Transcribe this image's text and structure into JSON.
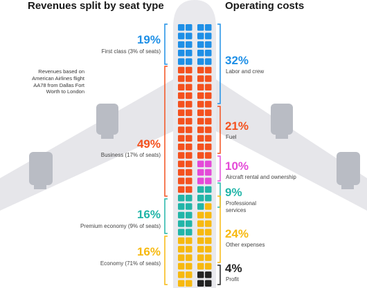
{
  "headings": {
    "left": "Revenues split by seat type",
    "right": "Operating costs"
  },
  "note": "Revenues based on American Airlines flight AA78 from Dallas Fort Worth to London",
  "colors": {
    "first": "#1e8fe6",
    "business": "#f4511e",
    "premium": "#22b5a8",
    "economy": "#f7b90f",
    "labor": "#1e8fe6",
    "fuel": "#f4511e",
    "aircraft": "#e44ad8",
    "professional": "#22b5a8",
    "other": "#f7b90f",
    "profit": "#222222",
    "fuselage": "#e9e9ed",
    "wing": "#e6e6ea",
    "engine": "#b9bcc4"
  },
  "chart_data": [
    {
      "type": "table",
      "title": "Revenues split by seat type",
      "categories": [
        "First class (3% of seats)",
        "Business (17% of seats)",
        "Premium economy (9% of seats)",
        "Economy (71% of seats)"
      ],
      "values": [
        19,
        49,
        16,
        16
      ],
      "value_labels": [
        "19%",
        "49%",
        "16%",
        "16%"
      ]
    },
    {
      "type": "table",
      "title": "Operating costs",
      "categories": [
        "Labor and crew",
        "Fuel",
        "Aircraft rental and ownership",
        "Professional services",
        "Other expenses",
        "Profit"
      ],
      "values": [
        32,
        21,
        10,
        9,
        24,
        4
      ],
      "value_labels": [
        "32%",
        "21%",
        "10%",
        "9%",
        "24%",
        "4%"
      ]
    }
  ]
}
